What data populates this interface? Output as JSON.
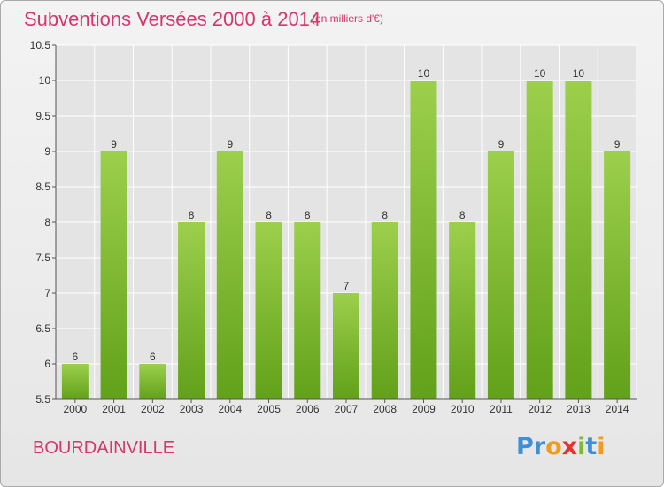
{
  "header": {
    "title": "Subventions Versées 2000 à 2014",
    "unit_note": "(en milliers d'€)"
  },
  "footer": {
    "commune": "BOURDAINVILLE",
    "logo_letters": [
      "P",
      "r",
      "o",
      "x",
      "i",
      "t",
      "i"
    ],
    "logo_colors": [
      "#3f8fd6",
      "#3f8fd6",
      "#f29a1b",
      "#e8322f",
      "#7bbb2f",
      "#3f8fd6",
      "#f29a1b"
    ]
  },
  "colors": {
    "accent": "#d6366e",
    "bar_light": "#9ccf4c",
    "bar_dark": "#62a11a",
    "grid": "#ffffff",
    "plot_bg": "#e4e4e4"
  },
  "chart_data": {
    "type": "bar",
    "title": "Subventions Versées 2000 à 2014",
    "subtitle": "(en milliers d'€)",
    "categories": [
      "2000",
      "2001",
      "2002",
      "2003",
      "2004",
      "2005",
      "2006",
      "2007",
      "2008",
      "2009",
      "2010",
      "2011",
      "2012",
      "2013",
      "2014"
    ],
    "values": [
      6,
      9,
      6,
      8,
      9,
      8,
      8,
      7,
      8,
      10,
      8,
      9,
      10,
      10,
      9
    ],
    "data_labels": [
      "6",
      "9",
      "6",
      "8",
      "9",
      "8",
      "8",
      "7",
      "8",
      "10",
      "8",
      "9",
      "10",
      "10",
      "9"
    ],
    "ylim": [
      5.5,
      10.5
    ],
    "yticks": [
      5.5,
      6,
      6.5,
      7,
      7.5,
      8,
      8.5,
      9,
      9.5,
      10,
      10.5
    ],
    "ytick_labels": [
      "5.5",
      "6",
      "6.5",
      "7",
      "7.5",
      "8",
      "8.5",
      "9",
      "9.5",
      "10",
      "10.5"
    ],
    "xlabel": "",
    "ylabel": "",
    "grid": true,
    "legend": "none"
  }
}
